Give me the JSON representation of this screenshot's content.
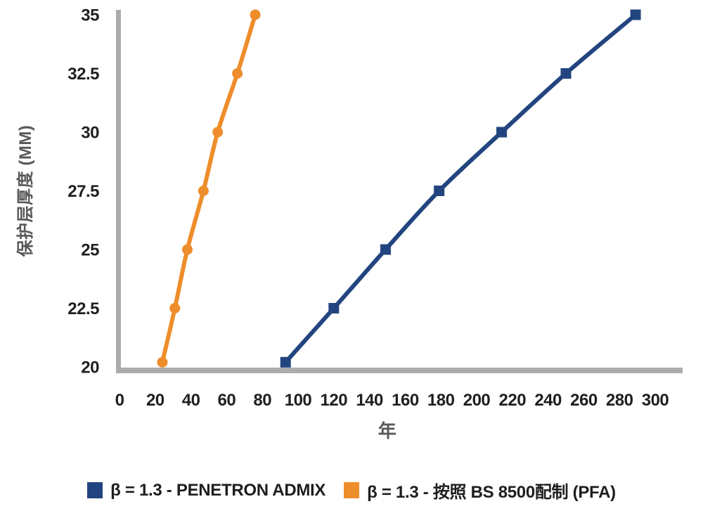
{
  "chart_data": {
    "type": "line",
    "title": "",
    "xlabel": "年",
    "ylabel": "保护层厚度 (MM)",
    "xlim": [
      0,
      300
    ],
    "ylim": [
      20,
      35
    ],
    "x_ticks": [
      0,
      20,
      40,
      60,
      80,
      100,
      120,
      140,
      160,
      180,
      200,
      220,
      240,
      260,
      280,
      300
    ],
    "y_ticks": [
      20,
      22.5,
      25,
      27.5,
      30,
      32.5,
      35
    ],
    "grid": false,
    "legend_position": "bottom",
    "axis_color": "#aaacae",
    "tick_label_color": "#1f1f1f",
    "axis_title_color": "#58595b",
    "series": [
      {
        "name": "penetron-admix",
        "label": "β = 1.3 - PENETRON ADMIX",
        "color": "#23457f",
        "marker": "square",
        "points": [
          [
            93,
            20.2
          ],
          [
            120,
            22.5
          ],
          [
            149,
            25
          ],
          [
            179,
            27.5
          ],
          [
            214,
            30
          ],
          [
            250,
            32.5
          ],
          [
            289,
            35
          ]
        ]
      },
      {
        "name": "bs8500-pfa",
        "label": "β = 1.3 - 按照 BS 8500配制 (PFA)",
        "color": "#ee8d2b",
        "marker": "circle",
        "points": [
          [
            24,
            20.2
          ],
          [
            31,
            22.5
          ],
          [
            38,
            25
          ],
          [
            47,
            27.5
          ],
          [
            55,
            30
          ],
          [
            66,
            32.5
          ],
          [
            76,
            35
          ]
        ]
      }
    ]
  }
}
